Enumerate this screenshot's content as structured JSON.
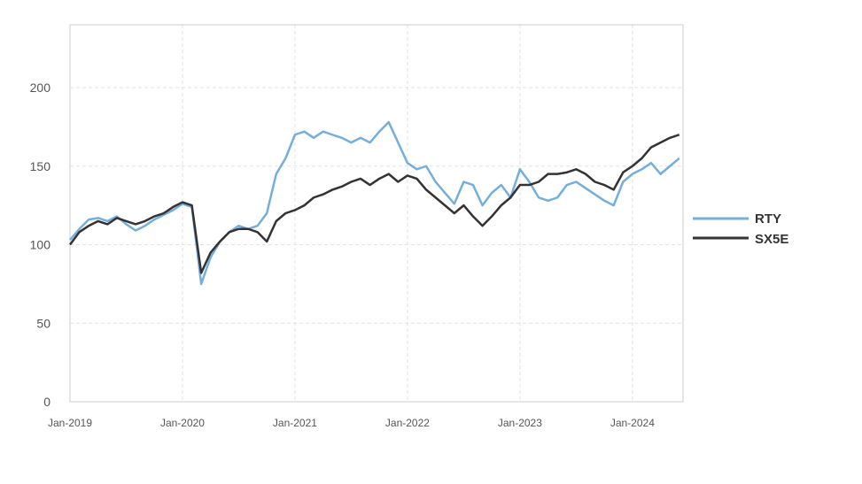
{
  "chart_data": {
    "type": "line",
    "x_ticks": [
      "Jan-2019",
      "Jan-2020",
      "Jan-2021",
      "Jan-2022",
      "Jan-2023",
      "Jan-2024"
    ],
    "y_ticks": [
      0,
      50,
      100,
      150,
      200
    ],
    "ylim": [
      0,
      240
    ],
    "xlim": [
      "2019-01",
      "2024-06"
    ],
    "grid": true,
    "legend_position": "right",
    "series": [
      {
        "name": "RTY",
        "color": "#74aedd",
        "x": [
          "2019-01",
          "2019-02",
          "2019-03",
          "2019-04",
          "2019-05",
          "2019-06",
          "2019-07",
          "2019-08",
          "2019-09",
          "2019-10",
          "2019-11",
          "2019-12",
          "2020-01",
          "2020-02",
          "2020-03",
          "2020-04",
          "2020-05",
          "2020-06",
          "2020-07",
          "2020-08",
          "2020-09",
          "2020-10",
          "2020-11",
          "2020-12",
          "2021-01",
          "2021-02",
          "2021-03",
          "2021-04",
          "2021-05",
          "2021-06",
          "2021-07",
          "2021-08",
          "2021-09",
          "2021-10",
          "2021-11",
          "2021-12",
          "2022-01",
          "2022-02",
          "2022-03",
          "2022-04",
          "2022-05",
          "2022-06",
          "2022-07",
          "2022-08",
          "2022-09",
          "2022-10",
          "2022-11",
          "2022-12",
          "2023-01",
          "2023-02",
          "2023-03",
          "2023-04",
          "2023-05",
          "2023-06",
          "2023-07",
          "2023-08",
          "2023-09",
          "2023-10",
          "2023-11",
          "2023-12",
          "2024-01",
          "2024-02",
          "2024-03",
          "2024-04",
          "2024-05",
          "2024-06"
        ],
        "values": [
          103,
          110,
          116,
          117,
          115,
          118,
          113,
          109,
          112,
          116,
          119,
          122,
          126,
          124,
          75,
          92,
          102,
          108,
          112,
          110,
          112,
          120,
          145,
          155,
          170,
          172,
          168,
          172,
          170,
          168,
          165,
          168,
          165,
          172,
          178,
          165,
          152,
          148,
          150,
          140,
          133,
          126,
          140,
          138,
          125,
          133,
          138,
          130,
          148,
          140,
          130,
          128,
          130,
          138,
          140,
          136,
          132,
          128,
          125,
          140,
          145,
          148,
          152,
          145,
          150,
          155
        ]
      },
      {
        "name": "SX5E",
        "color": "#333333",
        "x": [
          "2019-01",
          "2019-02",
          "2019-03",
          "2019-04",
          "2019-05",
          "2019-06",
          "2019-07",
          "2019-08",
          "2019-09",
          "2019-10",
          "2019-11",
          "2019-12",
          "2020-01",
          "2020-02",
          "2020-03",
          "2020-04",
          "2020-05",
          "2020-06",
          "2020-07",
          "2020-08",
          "2020-09",
          "2020-10",
          "2020-11",
          "2020-12",
          "2021-01",
          "2021-02",
          "2021-03",
          "2021-04",
          "2021-05",
          "2021-06",
          "2021-07",
          "2021-08",
          "2021-09",
          "2021-10",
          "2021-11",
          "2021-12",
          "2022-01",
          "2022-02",
          "2022-03",
          "2022-04",
          "2022-05",
          "2022-06",
          "2022-07",
          "2022-08",
          "2022-09",
          "2022-10",
          "2022-11",
          "2022-12",
          "2023-01",
          "2023-02",
          "2023-03",
          "2023-04",
          "2023-05",
          "2023-06",
          "2023-07",
          "2023-08",
          "2023-09",
          "2023-10",
          "2023-11",
          "2023-12",
          "2024-01",
          "2024-02",
          "2024-03",
          "2024-04",
          "2024-05",
          "2024-06"
        ],
        "values": [
          100,
          108,
          112,
          115,
          113,
          117,
          115,
          113,
          115,
          118,
          120,
          124,
          127,
          125,
          82,
          95,
          102,
          108,
          110,
          110,
          108,
          102,
          115,
          120,
          122,
          125,
          130,
          132,
          135,
          137,
          140,
          142,
          138,
          142,
          145,
          140,
          144,
          142,
          135,
          130,
          125,
          120,
          125,
          118,
          112,
          118,
          125,
          130,
          138,
          138,
          140,
          145,
          145,
          146,
          148,
          145,
          140,
          138,
          135,
          146,
          150,
          155,
          162,
          165,
          168,
          170
        ]
      }
    ]
  }
}
